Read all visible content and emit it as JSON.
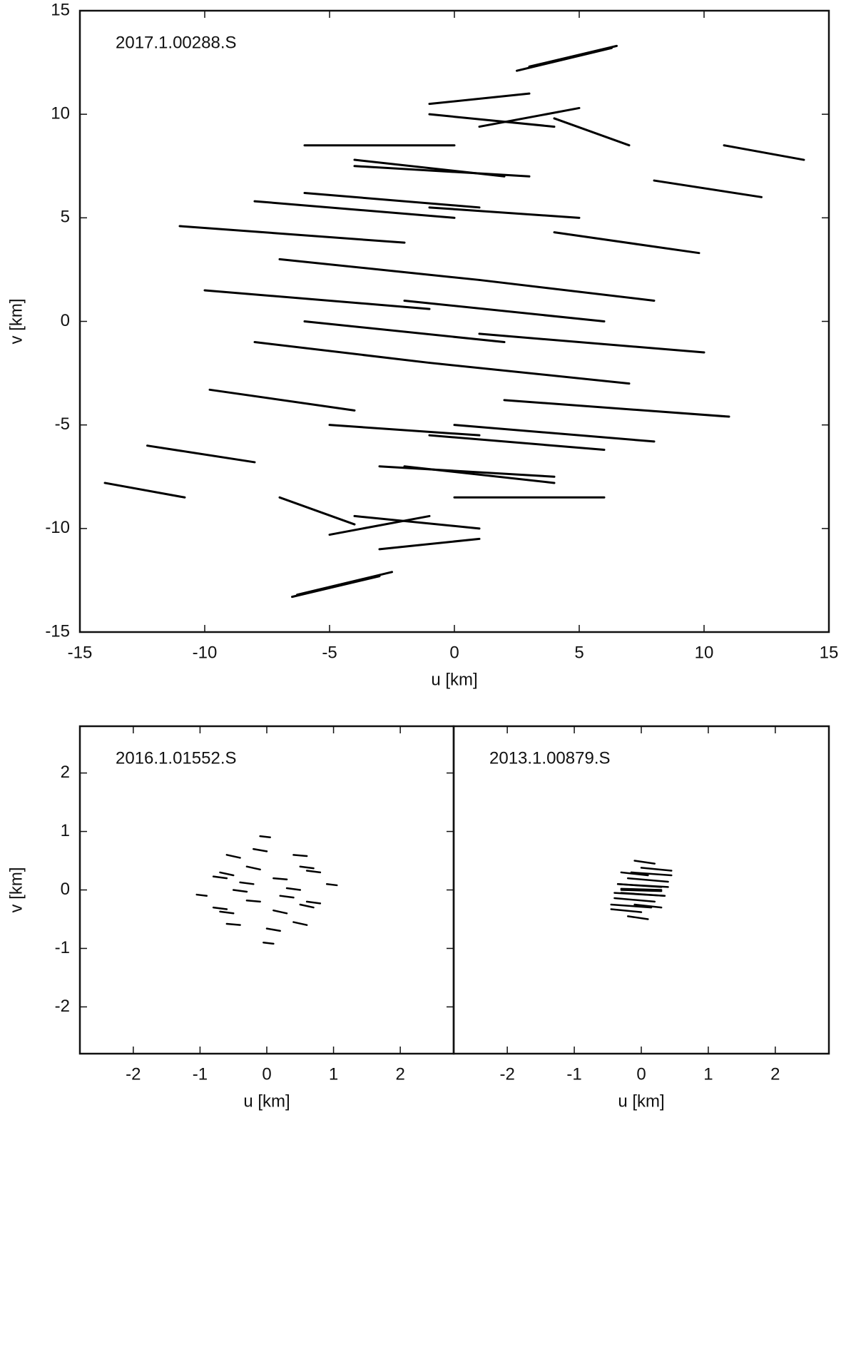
{
  "chart_data": [
    {
      "type": "uv_tracks",
      "title": "2017.1.00288.S",
      "xlabel": "u [km]",
      "ylabel": "v [km]",
      "xlim": [
        -15,
        15
      ],
      "ylim": [
        -15,
        15
      ],
      "xticks": [
        -15,
        -10,
        -5,
        0,
        5,
        10,
        15
      ],
      "yticks": [
        -15,
        -10,
        -5,
        0,
        5,
        10,
        15
      ],
      "color": "#000000",
      "tracks": [
        {
          "u": [
            -14,
            -10.8
          ],
          "v": [
            -7.8,
            -8.5
          ]
        },
        {
          "u": [
            14,
            10.8
          ],
          "v": [
            7.8,
            8.5
          ]
        },
        {
          "u": [
            -11,
            -2
          ],
          "v": [
            4.6,
            3.8
          ]
        },
        {
          "u": [
            11,
            2
          ],
          "v": [
            -4.6,
            -3.8
          ]
        },
        {
          "u": [
            -10,
            -1
          ],
          "v": [
            1.5,
            0.6
          ]
        },
        {
          "u": [
            10,
            1
          ],
          "v": [
            -1.5,
            -0.6
          ]
        },
        {
          "u": [
            -9.8,
            -4
          ],
          "v": [
            -3.3,
            -4.3
          ]
        },
        {
          "u": [
            9.8,
            4
          ],
          "v": [
            3.3,
            4.3
          ]
        },
        {
          "u": [
            -12.3,
            -8
          ],
          "v": [
            -6,
            -6.8
          ]
        },
        {
          "u": [
            12.3,
            8
          ],
          "v": [
            6,
            6.8
          ]
        },
        {
          "u": [
            -6.3,
            -2.5
          ],
          "v": [
            -13.2,
            -12.1
          ]
        },
        {
          "u": [
            6.3,
            2.5
          ],
          "v": [
            13.2,
            12.1
          ]
        },
        {
          "u": [
            -8,
            0
          ],
          "v": [
            5.8,
            5
          ]
        },
        {
          "u": [
            8,
            0
          ],
          "v": [
            -5.8,
            -5
          ]
        },
        {
          "u": [
            -6,
            1
          ],
          "v": [
            6.2,
            5.5
          ]
        },
        {
          "u": [
            6,
            -1
          ],
          "v": [
            -6.2,
            -5.5
          ]
        },
        {
          "u": [
            -4,
            2
          ],
          "v": [
            7.8,
            7
          ]
        },
        {
          "u": [
            4,
            -2
          ],
          "v": [
            -7.8,
            -7
          ]
        },
        {
          "u": [
            -1,
            4
          ],
          "v": [
            10,
            9.4
          ]
        },
        {
          "u": [
            1,
            -4
          ],
          "v": [
            -10,
            -9.4
          ]
        },
        {
          "u": [
            -7,
            -4
          ],
          "v": [
            -8.5,
            -9.8
          ]
        },
        {
          "u": [
            7,
            4
          ],
          "v": [
            8.5,
            9.8
          ]
        },
        {
          "u": [
            -5,
            -1
          ],
          "v": [
            -10.3,
            -9.4
          ]
        },
        {
          "u": [
            5,
            1
          ],
          "v": [
            10.3,
            9.4
          ]
        },
        {
          "u": [
            -3,
            1
          ],
          "v": [
            -11,
            -10.5
          ]
        },
        {
          "u": [
            3,
            -1
          ],
          "v": [
            11,
            10.5
          ]
        },
        {
          "u": [
            -7,
            1
          ],
          "v": [
            3,
            2
          ]
        },
        {
          "u": [
            7,
            -1
          ],
          "v": [
            -3,
            -2
          ]
        },
        {
          "u": [
            -8,
            -1
          ],
          "v": [
            -1,
            -2
          ]
        },
        {
          "u": [
            8,
            1
          ],
          "v": [
            1,
            2
          ]
        },
        {
          "u": [
            -5,
            1
          ],
          "v": [
            -5,
            -5.5
          ]
        },
        {
          "u": [
            5,
            -1
          ],
          "v": [
            5,
            5.5
          ]
        },
        {
          "u": [
            -3,
            4
          ],
          "v": [
            -7,
            -7.5
          ]
        },
        {
          "u": [
            3,
            -4
          ],
          "v": [
            7,
            7.5
          ]
        },
        {
          "u": [
            0,
            6
          ],
          "v": [
            -8.5,
            -8.5
          ]
        },
        {
          "u": [
            0,
            -6
          ],
          "v": [
            8.5,
            8.5
          ]
        },
        {
          "u": [
            3,
            6.5
          ],
          "v": [
            12.3,
            13.3
          ]
        },
        {
          "u": [
            -3,
            -6.5
          ],
          "v": [
            -12.3,
            -13.3
          ]
        },
        {
          "u": [
            -6,
            2
          ],
          "v": [
            0,
            -1
          ]
        },
        {
          "u": [
            6,
            -2
          ],
          "v": [
            0,
            1
          ]
        }
      ]
    },
    {
      "type": "uv_tracks",
      "title": "2016.1.01552.S",
      "xlabel": "u [km]",
      "ylabel": "v [km]",
      "xlim": [
        -2.8,
        2.8
      ],
      "ylim": [
        -2.8,
        2.8
      ],
      "xticks": [
        -2,
        -1,
        0,
        1,
        2
      ],
      "yticks": [
        -2,
        -1,
        0,
        1,
        2
      ],
      "color": "#000000",
      "tracks": [
        {
          "u": [
            -0.1,
            0.05
          ],
          "v": [
            0.92,
            0.9
          ]
        },
        {
          "u": [
            0.1,
            -0.05
          ],
          "v": [
            -0.92,
            -0.9
          ]
        },
        {
          "u": [
            -0.6,
            -0.4
          ],
          "v": [
            0.6,
            0.55
          ]
        },
        {
          "u": [
            0.6,
            0.4
          ],
          "v": [
            -0.6,
            -0.55
          ]
        },
        {
          "u": [
            0.4,
            0.6
          ],
          "v": [
            0.6,
            0.58
          ]
        },
        {
          "u": [
            -0.4,
            -0.6
          ],
          "v": [
            -0.6,
            -0.58
          ]
        },
        {
          "u": [
            -0.7,
            -0.5
          ],
          "v": [
            0.3,
            0.25
          ]
        },
        {
          "u": [
            0.7,
            0.5
          ],
          "v": [
            -0.3,
            -0.25
          ]
        },
        {
          "u": [
            0.9,
            1.05
          ],
          "v": [
            0.1,
            0.08
          ]
        },
        {
          "u": [
            -0.9,
            -1.05
          ],
          "v": [
            -0.1,
            -0.08
          ]
        },
        {
          "u": [
            -0.3,
            -0.1
          ],
          "v": [
            0.4,
            0.35
          ]
        },
        {
          "u": [
            0.3,
            0.1
          ],
          "v": [
            -0.4,
            -0.35
          ]
        },
        {
          "u": [
            0.1,
            0.3
          ],
          "v": [
            0.2,
            0.18
          ]
        },
        {
          "u": [
            -0.1,
            -0.3
          ],
          "v": [
            -0.2,
            -0.18
          ]
        },
        {
          "u": [
            -0.5,
            -0.3
          ],
          "v": [
            0,
            -0.03
          ]
        },
        {
          "u": [
            0.5,
            0.3
          ],
          "v": [
            0,
            0.03
          ]
        },
        {
          "u": [
            0.5,
            0.7
          ],
          "v": [
            0.4,
            0.37
          ]
        },
        {
          "u": [
            -0.5,
            -0.7
          ],
          "v": [
            -0.4,
            -0.37
          ]
        },
        {
          "u": [
            -0.2,
            0
          ],
          "v": [
            0.7,
            0.66
          ]
        },
        {
          "u": [
            0.2,
            0
          ],
          "v": [
            -0.7,
            -0.66
          ]
        },
        {
          "u": [
            0.2,
            0.4
          ],
          "v": [
            -0.1,
            -0.13
          ]
        },
        {
          "u": [
            -0.2,
            -0.4
          ],
          "v": [
            0.1,
            0.13
          ]
        },
        {
          "u": [
            -0.8,
            -0.6
          ],
          "v": [
            -0.3,
            -0.33
          ]
        },
        {
          "u": [
            0.8,
            0.6
          ],
          "v": [
            0.3,
            0.33
          ]
        },
        {
          "u": [
            0.6,
            0.8
          ],
          "v": [
            -0.2,
            -0.23
          ]
        },
        {
          "u": [
            -0.6,
            -0.8
          ],
          "v": [
            0.2,
            0.23
          ]
        }
      ]
    },
    {
      "type": "uv_tracks",
      "title": "2013.1.00879.S",
      "xlabel": "u [km]",
      "xlim": [
        -2.8,
        2.8
      ],
      "ylim": [
        -2.8,
        2.8
      ],
      "xticks": [
        -2,
        -1,
        0,
        1,
        2
      ],
      "color": "#000000",
      "tracks": [
        {
          "u": [
            -0.1,
            0.2
          ],
          "v": [
            0.5,
            0.45
          ]
        },
        {
          "u": [
            0.1,
            -0.2
          ],
          "v": [
            -0.5,
            -0.45
          ]
        },
        {
          "u": [
            -0.3,
            0.1
          ],
          "v": [
            0.3,
            0.25
          ]
        },
        {
          "u": [
            0.3,
            -0.1
          ],
          "v": [
            -0.3,
            -0.25
          ]
        },
        {
          "u": [
            -0.35,
            0.3
          ],
          "v": [
            0.1,
            0.05
          ]
        },
        {
          "u": [
            0.35,
            -0.3
          ],
          "v": [
            -0.1,
            -0.05
          ]
        },
        {
          "u": [
            -0.4,
            0.35
          ],
          "v": [
            -0.05,
            -0.1
          ]
        },
        {
          "u": [
            0.4,
            -0.35
          ],
          "v": [
            0.05,
            0.1
          ]
        },
        {
          "u": [
            -0.2,
            0.4
          ],
          "v": [
            0.2,
            0.14
          ]
        },
        {
          "u": [
            0.2,
            -0.4
          ],
          "v": [
            -0.2,
            -0.14
          ]
        },
        {
          "u": [
            -0.45,
            0.15
          ],
          "v": [
            -0.25,
            -0.3
          ]
        },
        {
          "u": [
            0.45,
            -0.15
          ],
          "v": [
            0.25,
            0.3
          ]
        },
        {
          "u": [
            0,
            0.45
          ],
          "v": [
            0.38,
            0.33
          ]
        },
        {
          "u": [
            0,
            -0.45
          ],
          "v": [
            -0.38,
            -0.33
          ]
        },
        {
          "u": [
            -0.3,
            0.3
          ],
          "v": [
            0,
            -0.02
          ]
        },
        {
          "u": [
            0.3,
            -0.3
          ],
          "v": [
            0,
            0.02
          ]
        }
      ]
    }
  ]
}
